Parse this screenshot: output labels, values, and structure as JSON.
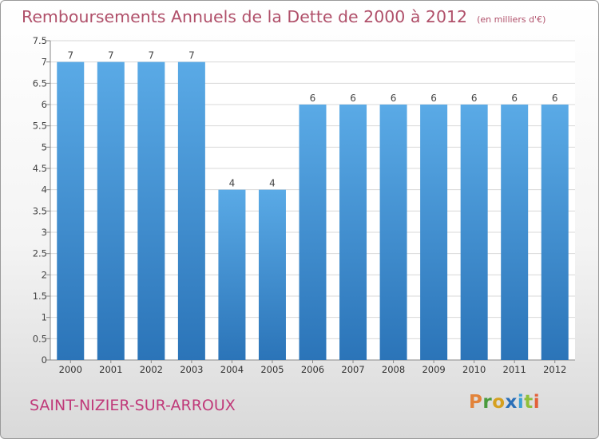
{
  "chart_data": {
    "type": "bar",
    "title": "Remboursements Annuels de la Dette de 2000 à 2012",
    "unit_note": "(en milliers d'€)",
    "categories": [
      "2000",
      "2001",
      "2002",
      "2003",
      "2004",
      "2005",
      "2006",
      "2007",
      "2008",
      "2009",
      "2010",
      "2011",
      "2012"
    ],
    "values": [
      7,
      7,
      7,
      7,
      4,
      4,
      6,
      6,
      6,
      6,
      6,
      6,
      6
    ],
    "data_labels": [
      "7",
      "7",
      "7",
      "7",
      "4",
      "4",
      "6",
      "6",
      "6",
      "6",
      "6",
      "6",
      "6"
    ],
    "ylim": [
      0,
      7.5
    ],
    "yticks": [
      "0",
      "0.5",
      "1",
      "1.5",
      "2",
      "2.5",
      "3",
      "3.5",
      "4",
      "4.5",
      "5",
      "5.5",
      "6",
      "6.5",
      "7",
      "7.5"
    ],
    "grid": true,
    "bar_color": "#3d8fd4"
  },
  "footer": {
    "commune": "SAINT-NIZIER-SUR-ARROUX",
    "brand_letters": [
      "P",
      "r",
      "o",
      "x",
      "i",
      "t",
      "i"
    ]
  },
  "colors": {
    "title": "#b0506a",
    "commune": "#c03a7a",
    "brand": [
      "#e2833a",
      "#4a9b3d",
      "#d5a020",
      "#2a6fb8",
      "#3aa0d5",
      "#8fbf3a",
      "#e2603a"
    ]
  }
}
